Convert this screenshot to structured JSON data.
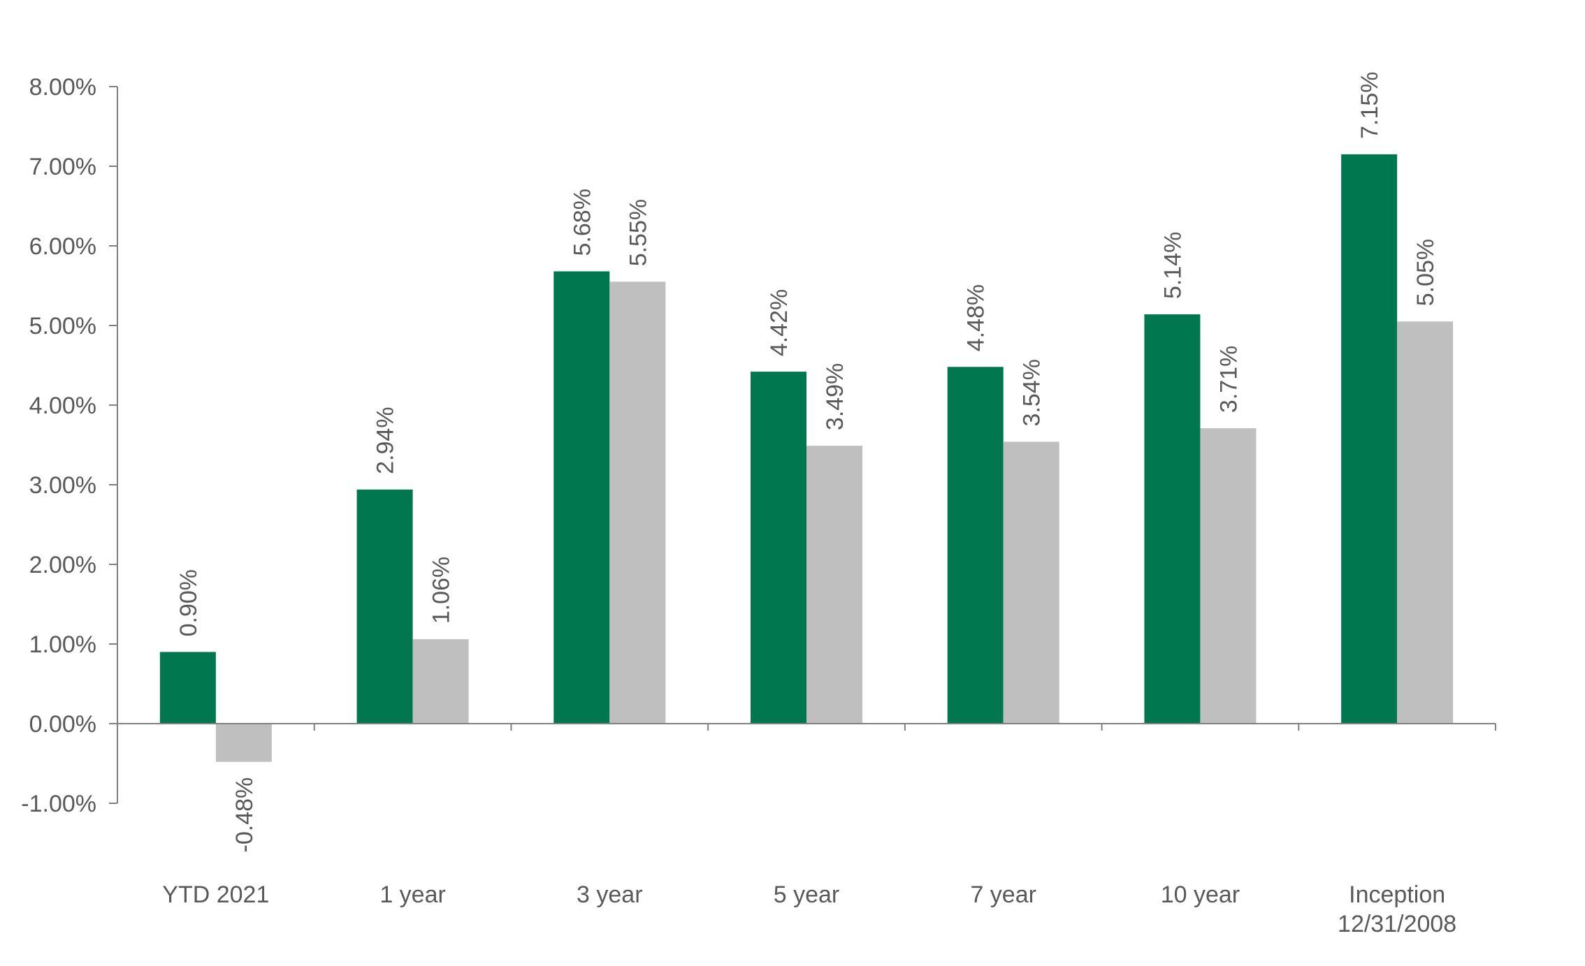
{
  "chart_data": {
    "type": "bar",
    "title": "",
    "xlabel": "",
    "ylabel": "",
    "categories": [
      [
        "YTD 2021"
      ],
      [
        "1 year"
      ],
      [
        "3 year"
      ],
      [
        "5 year"
      ],
      [
        "7 year"
      ],
      [
        "10 year"
      ],
      [
        "Inception",
        "12/31/2008"
      ]
    ],
    "series": [
      {
        "color": "#00774F",
        "values": [
          0.9,
          2.94,
          5.68,
          4.42,
          4.48,
          5.14,
          7.15
        ],
        "labels": [
          "0.90%",
          "2.94%",
          "5.68%",
          "4.42%",
          "4.48%",
          "5.14%",
          "7.15%"
        ]
      },
      {
        "color": "#BFBFBF",
        "values": [
          -0.48,
          1.06,
          5.55,
          3.49,
          3.54,
          3.71,
          5.05
        ],
        "labels": [
          "-0.48%",
          "1.06%",
          "5.55%",
          "3.49%",
          "3.54%",
          "3.71%",
          "5.05%"
        ]
      }
    ],
    "ylim": [
      -1,
      8
    ],
    "yticks": [
      8,
      7,
      6,
      5,
      4,
      3,
      2,
      1,
      0,
      -1
    ],
    "ytick_labels": [
      "8.00%",
      "7.00%",
      "6.00%",
      "5.00%",
      "4.00%",
      "3.00%",
      "2.00%",
      "1.00%",
      "0.00%",
      "-1.00%"
    ],
    "grid": false,
    "legend": "none",
    "axis_color": "#808080"
  }
}
